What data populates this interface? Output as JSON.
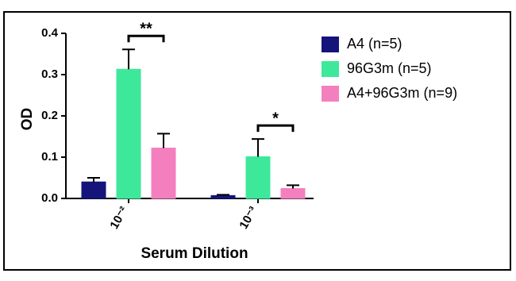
{
  "chart_data": {
    "type": "bar",
    "categories": [
      "10⁻²",
      "10⁻³"
    ],
    "series": [
      {
        "name": "A4 (n=5)",
        "color": "#14147a",
        "values": [
          0.04,
          0.007
        ],
        "errors": [
          0.01,
          0.002
        ]
      },
      {
        "name": "96G3m (n=5)",
        "color": "#3de89a",
        "values": [
          0.313,
          0.101
        ],
        "errors": [
          0.048,
          0.043
        ]
      },
      {
        "name": "A4+96G3m (n=9)",
        "color": "#f47fbf",
        "values": [
          0.122,
          0.024
        ],
        "errors": [
          0.035,
          0.008
        ]
      }
    ],
    "annotations": [
      "**",
      "*"
    ],
    "xlabel": "Serum Dilution",
    "ylabel": "OD",
    "ylim": [
      0,
      0.4
    ],
    "yticks": [
      {
        "value": 0,
        "label": "0.0"
      },
      0.1,
      0.2,
      0.3,
      0.4
    ],
    "legend": "right"
  }
}
